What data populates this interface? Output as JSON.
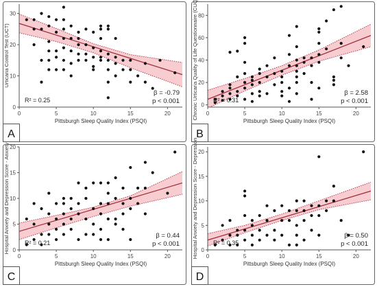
{
  "chart_data": [
    {
      "panel": "A",
      "type": "scatter",
      "xlabel": "Pittsburgh Sleep Quality Index (PSQI)",
      "ylabel": "Urticaria Control Test (UCT)",
      "xlim": [
        0,
        22
      ],
      "ylim": [
        0,
        33
      ],
      "xticks": [
        0,
        5,
        10,
        15,
        20
      ],
      "yticks": [
        0,
        10,
        20,
        30
      ],
      "r2": "R² = 0.25",
      "beta": "β = -0.79",
      "p": "p < 0.001",
      "fit": {
        "x": [
          0,
          22
        ],
        "y": [
          26.8,
          10.4
        ]
      },
      "ci": {
        "x": [
          0,
          5,
          10,
          15,
          22
        ],
        "lower": [
          23.8,
          21.0,
          17.4,
          12.6,
          6.5
        ],
        "upper": [
          29.8,
          25.2,
          20.3,
          16.8,
          14.3
        ]
      },
      "points": [
        [
          1,
          28
        ],
        [
          2,
          28
        ],
        [
          2,
          25
        ],
        [
          2,
          20
        ],
        [
          3,
          30
        ],
        [
          3,
          25
        ],
        [
          3,
          15
        ],
        [
          3,
          8
        ],
        [
          4,
          29
        ],
        [
          4,
          26
        ],
        [
          4,
          21
        ],
        [
          4,
          18
        ],
        [
          4,
          15
        ],
        [
          4,
          12
        ],
        [
          5,
          28
        ],
        [
          5,
          24
        ],
        [
          5,
          18
        ],
        [
          5,
          16
        ],
        [
          5,
          12
        ],
        [
          6,
          32
        ],
        [
          6,
          28
        ],
        [
          6,
          25
        ],
        [
          6,
          22
        ],
        [
          6,
          19
        ],
        [
          6,
          15
        ],
        [
          6,
          12
        ],
        [
          7,
          26
        ],
        [
          7,
          22
        ],
        [
          7,
          18
        ],
        [
          7,
          14
        ],
        [
          7,
          10
        ],
        [
          8,
          24
        ],
        [
          8,
          22
        ],
        [
          8,
          20
        ],
        [
          8,
          17
        ],
        [
          8,
          15
        ],
        [
          9,
          25
        ],
        [
          9,
          20
        ],
        [
          9,
          17
        ],
        [
          9,
          15
        ],
        [
          10,
          24
        ],
        [
          10,
          19
        ],
        [
          10,
          16
        ],
        [
          10,
          13
        ],
        [
          10,
          12
        ],
        [
          11,
          26
        ],
        [
          11,
          25
        ],
        [
          11,
          22
        ],
        [
          11,
          18
        ],
        [
          11,
          16
        ],
        [
          11,
          15
        ],
        [
          12,
          26
        ],
        [
          12,
          25
        ],
        [
          12,
          17
        ],
        [
          12,
          15
        ],
        [
          12,
          12
        ],
        [
          12,
          8
        ],
        [
          12,
          3
        ],
        [
          13,
          22
        ],
        [
          13,
          16
        ],
        [
          13,
          14
        ],
        [
          13,
          10
        ],
        [
          14,
          15
        ],
        [
          14,
          12
        ],
        [
          15,
          15
        ],
        [
          15,
          12
        ],
        [
          15,
          8
        ],
        [
          16,
          10
        ],
        [
          17,
          14
        ],
        [
          17,
          8
        ],
        [
          18,
          6
        ],
        [
          19,
          15
        ],
        [
          21,
          11
        ]
      ]
    },
    {
      "panel": "B",
      "type": "scatter",
      "xlabel": "Pittsburgh Sleep Quality Index (PSQI)",
      "ylabel": "Chronic Urticaria Quality of Life Questionnaire (CUQOL)",
      "xlim": [
        0,
        22
      ],
      "ylim": [
        -2,
        90
      ],
      "xticks": [
        0,
        5,
        10,
        15,
        20
      ],
      "yticks": [
        0,
        20,
        40,
        60,
        80
      ],
      "r2": "R² = 0.31",
      "beta": "β = 2.58",
      "p": "p < 0.001",
      "fit": {
        "x": [
          0,
          22
        ],
        "y": [
          5,
          62
        ]
      },
      "ci": {
        "x": [
          0,
          5,
          10,
          15,
          22
        ],
        "lower": [
          -3,
          12.5,
          26.5,
          39.0,
          52.0
        ],
        "upper": [
          13,
          23.5,
          35.0,
          49.0,
          72.0
        ]
      },
      "points": [
        [
          1,
          2
        ],
        [
          1,
          5
        ],
        [
          2,
          8
        ],
        [
          2,
          12
        ],
        [
          2,
          4
        ],
        [
          3,
          10
        ],
        [
          3,
          15
        ],
        [
          3,
          18
        ],
        [
          3,
          5
        ],
        [
          3,
          47
        ],
        [
          4,
          12
        ],
        [
          4,
          25
        ],
        [
          4,
          8
        ],
        [
          4,
          48
        ],
        [
          5,
          15
        ],
        [
          5,
          20
        ],
        [
          5,
          28
        ],
        [
          5,
          38
        ],
        [
          5,
          55
        ],
        [
          5,
          60
        ],
        [
          5,
          5
        ],
        [
          6,
          10
        ],
        [
          6,
          18
        ],
        [
          6,
          22
        ],
        [
          6,
          3
        ],
        [
          6,
          25
        ],
        [
          7,
          20
        ],
        [
          7,
          28
        ],
        [
          7,
          32
        ],
        [
          7,
          12
        ],
        [
          7,
          8
        ],
        [
          8,
          25
        ],
        [
          8,
          10
        ],
        [
          8,
          35
        ],
        [
          9,
          18
        ],
        [
          9,
          28
        ],
        [
          9,
          42
        ],
        [
          10,
          20
        ],
        [
          10,
          25
        ],
        [
          10,
          30
        ],
        [
          10,
          12
        ],
        [
          10,
          8
        ],
        [
          11,
          35
        ],
        [
          11,
          45
        ],
        [
          11,
          15
        ],
        [
          11,
          3
        ],
        [
          11,
          62
        ],
        [
          12,
          30
        ],
        [
          12,
          35
        ],
        [
          12,
          40
        ],
        [
          12,
          20
        ],
        [
          12,
          10
        ],
        [
          12,
          25
        ],
        [
          12,
          52
        ],
        [
          12,
          70
        ],
        [
          13,
          28
        ],
        [
          13,
          38
        ],
        [
          13,
          42
        ],
        [
          14,
          35
        ],
        [
          14,
          42
        ],
        [
          14,
          20
        ],
        [
          14,
          5
        ],
        [
          15,
          38
        ],
        [
          15,
          55
        ],
        [
          15,
          65
        ],
        [
          15,
          68
        ],
        [
          15,
          15
        ],
        [
          15,
          45
        ],
        [
          16,
          50
        ],
        [
          16,
          75
        ],
        [
          17,
          25
        ],
        [
          17,
          22
        ],
        [
          17,
          18
        ],
        [
          17,
          85
        ],
        [
          18,
          88
        ],
        [
          18,
          55
        ],
        [
          18,
          42
        ],
        [
          19,
          35
        ],
        [
          21,
          52
        ]
      ]
    },
    {
      "panel": "C",
      "type": "scatter",
      "xlabel": "Pittsburgh Sleep Quality Index (PSQI)",
      "ylabel": "Hospital Anxiety and Depression Score - Anxiety",
      "xlim": [
        0,
        22
      ],
      "ylim": [
        0,
        20
      ],
      "xticks": [
        0,
        5,
        10,
        15,
        20
      ],
      "yticks": [
        0,
        5,
        10,
        15,
        20
      ],
      "r2": "R² = 0.21",
      "beta": "β = 0.44",
      "p": "p < 0.001",
      "fit": {
        "x": [
          0,
          22
        ],
        "y": [
          3.6,
          13.0
        ]
      },
      "ci": {
        "x": [
          0,
          5,
          10,
          15,
          22
        ],
        "lower": [
          2.0,
          4.3,
          6.5,
          8.5,
          10.8
        ],
        "upper": [
          5.2,
          6.7,
          8.3,
          10.5,
          15.2
        ]
      },
      "points": [
        [
          1,
          1
        ],
        [
          1,
          6
        ],
        [
          2,
          9
        ],
        [
          2,
          5
        ],
        [
          2,
          2
        ],
        [
          3,
          8
        ],
        [
          3,
          3
        ],
        [
          3,
          1
        ],
        [
          4,
          11
        ],
        [
          4,
          7
        ],
        [
          4,
          5
        ],
        [
          4,
          3
        ],
        [
          5,
          9
        ],
        [
          5,
          6
        ],
        [
          5,
          4
        ],
        [
          5,
          2
        ],
        [
          6,
          10
        ],
        [
          6,
          9
        ],
        [
          6,
          7
        ],
        [
          6,
          5
        ],
        [
          6,
          3
        ],
        [
          7,
          10
        ],
        [
          7,
          8
        ],
        [
          7,
          6
        ],
        [
          7,
          4
        ],
        [
          8,
          13
        ],
        [
          8,
          7
        ],
        [
          8,
          9
        ],
        [
          8,
          2
        ],
        [
          9,
          12
        ],
        [
          9,
          6
        ],
        [
          9,
          10
        ],
        [
          9,
          3
        ],
        [
          10,
          13
        ],
        [
          10,
          8
        ],
        [
          10,
          5
        ],
        [
          10,
          3
        ],
        [
          11,
          13
        ],
        [
          11,
          9
        ],
        [
          11,
          7
        ],
        [
          11,
          4
        ],
        [
          11,
          2
        ],
        [
          12,
          11
        ],
        [
          12,
          9
        ],
        [
          12,
          13
        ],
        [
          12,
          6
        ],
        [
          12,
          2
        ],
        [
          13,
          10
        ],
        [
          13,
          14
        ],
        [
          13,
          6
        ],
        [
          13,
          5
        ],
        [
          14,
          12
        ],
        [
          14,
          9
        ],
        [
          14,
          7
        ],
        [
          14,
          4
        ],
        [
          15,
          16
        ],
        [
          15,
          10
        ],
        [
          15,
          8
        ],
        [
          15,
          2
        ],
        [
          16,
          12
        ],
        [
          16,
          9
        ],
        [
          17,
          17
        ],
        [
          17,
          12
        ],
        [
          17,
          7
        ],
        [
          18,
          15
        ],
        [
          20,
          11
        ],
        [
          21,
          19
        ]
      ]
    },
    {
      "panel": "D",
      "type": "scatter",
      "xlabel": "Pittsburgh Sleep Quality Index (PSQI)",
      "ylabel": "Hospital Anxiety and Depression Score - Depression",
      "xlim": [
        0,
        22
      ],
      "ylim": [
        0,
        21
      ],
      "xticks": [
        0,
        5,
        10,
        15,
        20
      ],
      "yticks": [
        0,
        5,
        10,
        15,
        20
      ],
      "r2": "R² = 0.35",
      "beta": "β = 0.50",
      "p": "p < 0.001",
      "fit": {
        "x": [
          0,
          22
        ],
        "y": [
          2.0,
          12.0
        ]
      },
      "ci": {
        "x": [
          0,
          5,
          10,
          15,
          22
        ],
        "lower": [
          0.8,
          3.5,
          6.0,
          8.2,
          10.2
        ],
        "upper": [
          3.3,
          5.0,
          7.3,
          10.0,
          13.8
        ]
      },
      "points": [
        [
          1,
          1
        ],
        [
          2,
          2
        ],
        [
          2,
          5
        ],
        [
          3,
          3
        ],
        [
          3,
          1
        ],
        [
          3,
          6
        ],
        [
          4,
          3
        ],
        [
          4,
          4
        ],
        [
          4,
          1
        ],
        [
          5,
          12
        ],
        [
          5,
          11
        ],
        [
          5,
          4
        ],
        [
          5,
          2
        ],
        [
          5,
          7
        ],
        [
          6,
          6
        ],
        [
          6,
          5
        ],
        [
          6,
          3
        ],
        [
          6,
          1
        ],
        [
          7,
          7
        ],
        [
          7,
          4
        ],
        [
          7,
          2
        ],
        [
          8,
          9
        ],
        [
          8,
          6
        ],
        [
          8,
          3
        ],
        [
          9,
          8
        ],
        [
          9,
          4
        ],
        [
          9,
          2
        ],
        [
          10,
          6
        ],
        [
          10,
          3
        ],
        [
          10,
          9
        ],
        [
          11,
          8
        ],
        [
          11,
          6
        ],
        [
          11,
          1
        ],
        [
          12,
          10
        ],
        [
          12,
          8
        ],
        [
          12,
          5
        ],
        [
          12,
          3
        ],
        [
          12,
          1
        ],
        [
          13,
          10
        ],
        [
          13,
          8
        ],
        [
          13,
          6
        ],
        [
          13,
          2
        ],
        [
          14,
          9
        ],
        [
          14,
          7
        ],
        [
          14,
          4
        ],
        [
          15,
          19
        ],
        [
          15,
          9
        ],
        [
          15,
          7
        ],
        [
          15,
          3
        ],
        [
          16,
          10
        ],
        [
          16,
          8
        ],
        [
          17,
          13
        ],
        [
          17,
          10
        ],
        [
          18,
          6
        ],
        [
          19,
          3
        ],
        [
          21,
          20
        ]
      ]
    }
  ]
}
